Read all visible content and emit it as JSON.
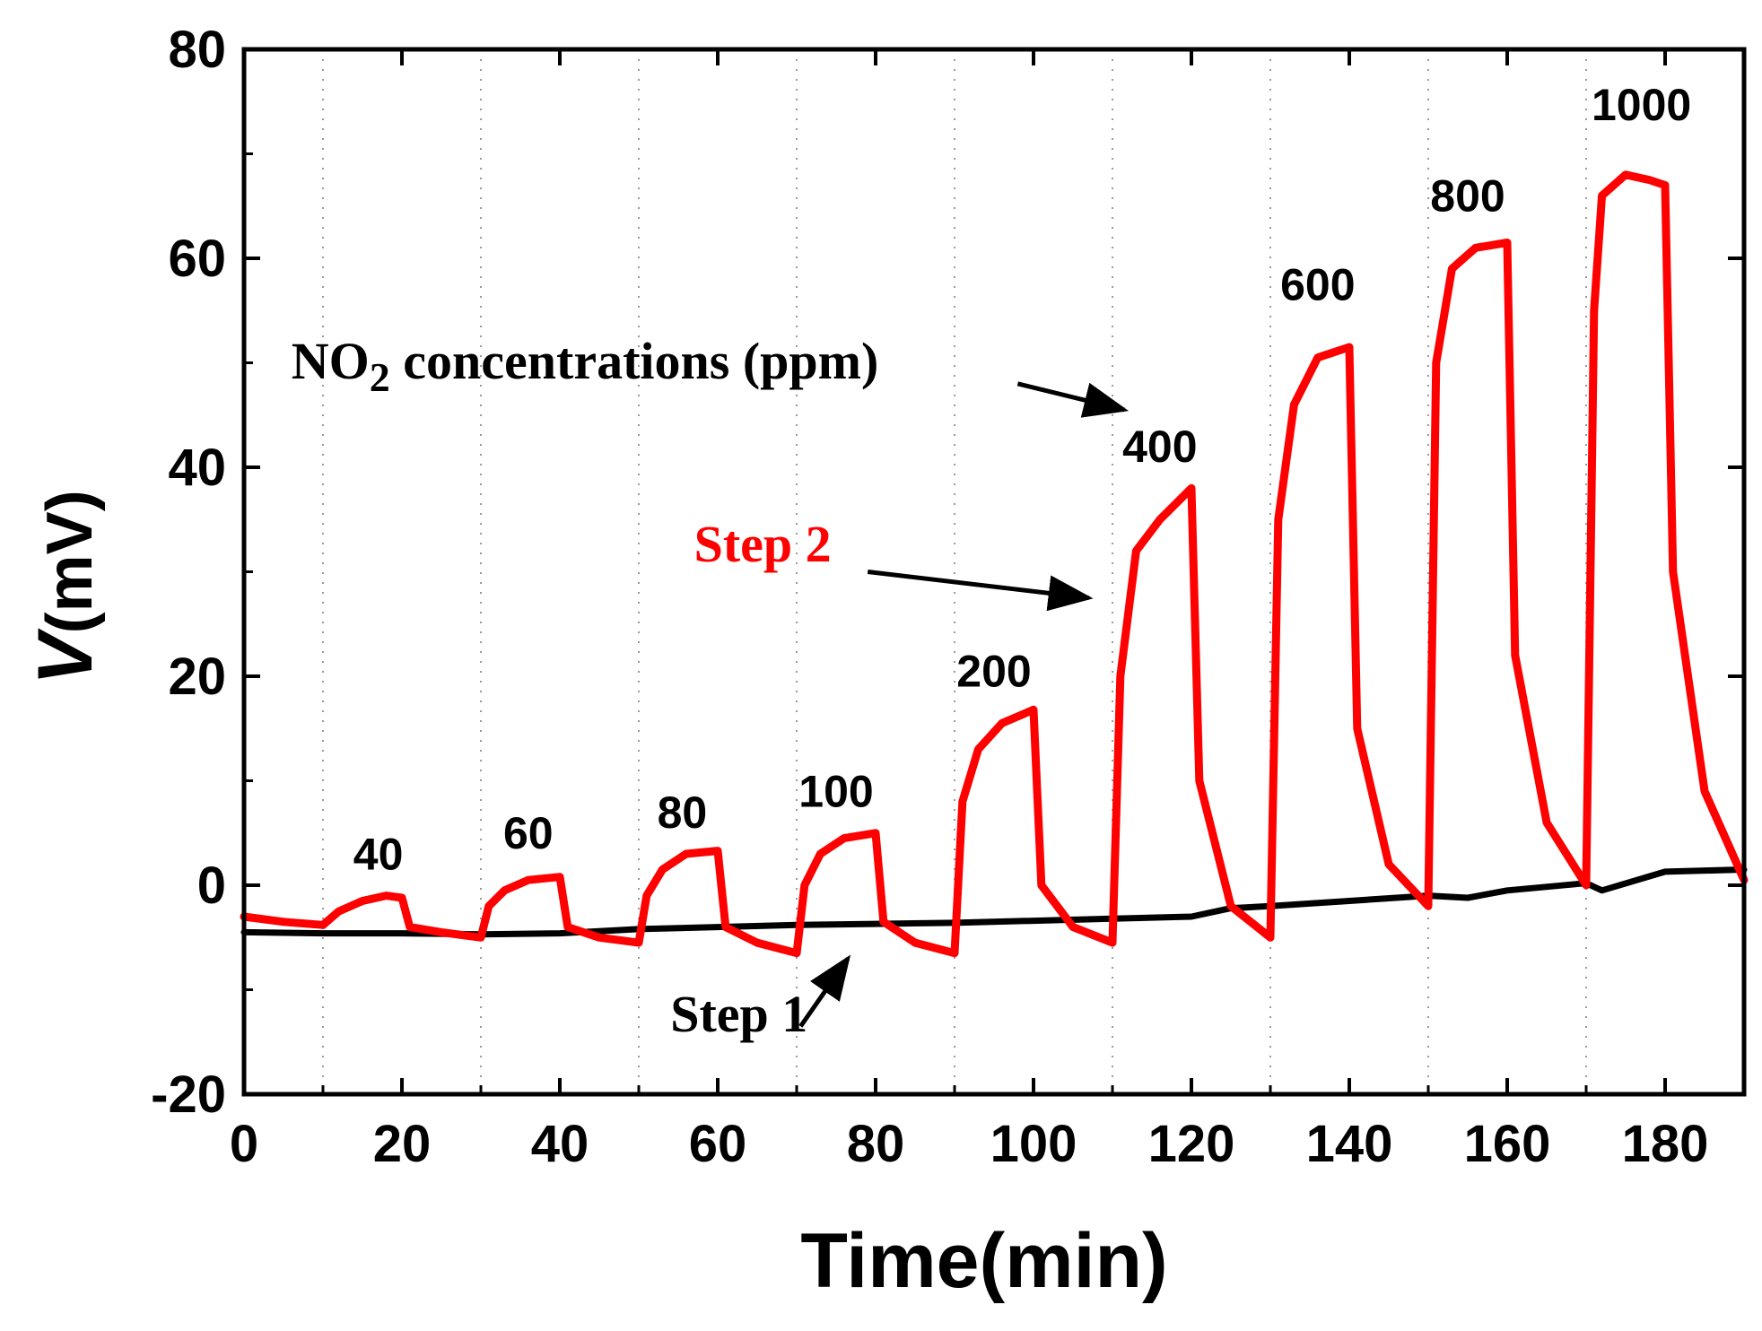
{
  "chart_data": {
    "type": "line",
    "title": "",
    "xlabel": "Time(min)",
    "ylabel_var": "V",
    "ylabel_unit": "(mV)",
    "xlim": [
      0,
      190
    ],
    "ylim": [
      -20,
      80
    ],
    "x_ticks": [
      0,
      20,
      40,
      60,
      80,
      100,
      120,
      140,
      160,
      180
    ],
    "y_ticks": [
      -20,
      0,
      20,
      40,
      60,
      80
    ],
    "x_minor_grid": [
      10,
      30,
      50,
      70,
      90,
      110,
      130,
      150,
      170
    ],
    "grid": "dotted vertical at minor ticks",
    "colors": {
      "step1": "#000000",
      "step2": "#ff0000",
      "axis": "#000000"
    },
    "series": [
      {
        "name": "Step 1",
        "color": "#000000",
        "x": [
          0,
          10,
          20,
          30,
          40,
          50,
          60,
          70,
          80,
          90,
          100,
          110,
          120,
          125,
          130,
          140,
          150,
          155,
          160,
          170,
          172,
          180,
          190
        ],
        "y": [
          -4.5,
          -4.6,
          -4.6,
          -4.7,
          -4.6,
          -4.2,
          -4,
          -3.8,
          -3.7,
          -3.6,
          -3.4,
          -3.2,
          -3,
          -2.2,
          -2,
          -1.5,
          -1,
          -1.2,
          -0.5,
          0.2,
          -0.5,
          1.3,
          1.5
        ]
      },
      {
        "name": "Step 2",
        "color": "#ff0000",
        "x": [
          0,
          5,
          10,
          12,
          15,
          18,
          20,
          21,
          25,
          30,
          31,
          33,
          36,
          40,
          41,
          45,
          50,
          51,
          53,
          56,
          60,
          61,
          65,
          70,
          71,
          73,
          76,
          80,
          81,
          85,
          90,
          91,
          93,
          96,
          100,
          101,
          105,
          110,
          111,
          113,
          116,
          120,
          121,
          125,
          130,
          131,
          133,
          136,
          140,
          141,
          145,
          150,
          151,
          153,
          156,
          160,
          161,
          165,
          170,
          171,
          172,
          175,
          178,
          180,
          181,
          185,
          190
        ],
        "y": [
          -3,
          -3.5,
          -3.8,
          -2.5,
          -1.5,
          -1,
          -1.2,
          -4,
          -4.5,
          -5,
          -2,
          -0.5,
          0.5,
          0.8,
          -4,
          -5,
          -5.5,
          -1,
          1.5,
          3,
          3.3,
          -4,
          -5.5,
          -6.5,
          0,
          3,
          4.5,
          5,
          -3.5,
          -5.5,
          -6.5,
          8,
          13,
          15.5,
          16.8,
          0,
          -4,
          -5.5,
          20,
          32,
          35,
          38,
          10,
          -2,
          -5,
          35,
          46,
          50.5,
          51.5,
          15,
          2,
          -2,
          50,
          59,
          61,
          61.5,
          22,
          6,
          0,
          55,
          66,
          68,
          67.5,
          67,
          30,
          9,
          0.5
        ]
      }
    ],
    "concentration_labels": [
      {
        "text": "40",
        "x": 17,
        "y": 1.5
      },
      {
        "text": "60",
        "x": 36,
        "y": 3.5
      },
      {
        "text": "80",
        "x": 55.5,
        "y": 5.5
      },
      {
        "text": "100",
        "x": 75,
        "y": 7.5
      },
      {
        "text": "200",
        "x": 95,
        "y": 19
      },
      {
        "text": "400",
        "x": 116,
        "y": 40.5
      },
      {
        "text": "600",
        "x": 136,
        "y": 56
      },
      {
        "text": "800",
        "x": 155,
        "y": 64.5
      },
      {
        "text": "1000",
        "x": 177,
        "y": 73.2
      }
    ],
    "annotations": [
      {
        "text_main": "NO",
        "text_sub": "2",
        "text_rest": " concentrations (ppm)",
        "x": 6,
        "y": 48.5,
        "arrow_from": [
          98,
          48
        ],
        "arrow_to": [
          111.5,
          45.5
        ]
      },
      {
        "text": "Step 2",
        "x": 57,
        "y": 31,
        "arrow_from": [
          79,
          30
        ],
        "arrow_to": [
          107,
          27.5
        ]
      },
      {
        "text": "Step 1",
        "x": 54,
        "y": -14,
        "arrow_from": [
          70.5,
          -13.5
        ],
        "arrow_to": [
          76.5,
          -7
        ]
      }
    ]
  }
}
